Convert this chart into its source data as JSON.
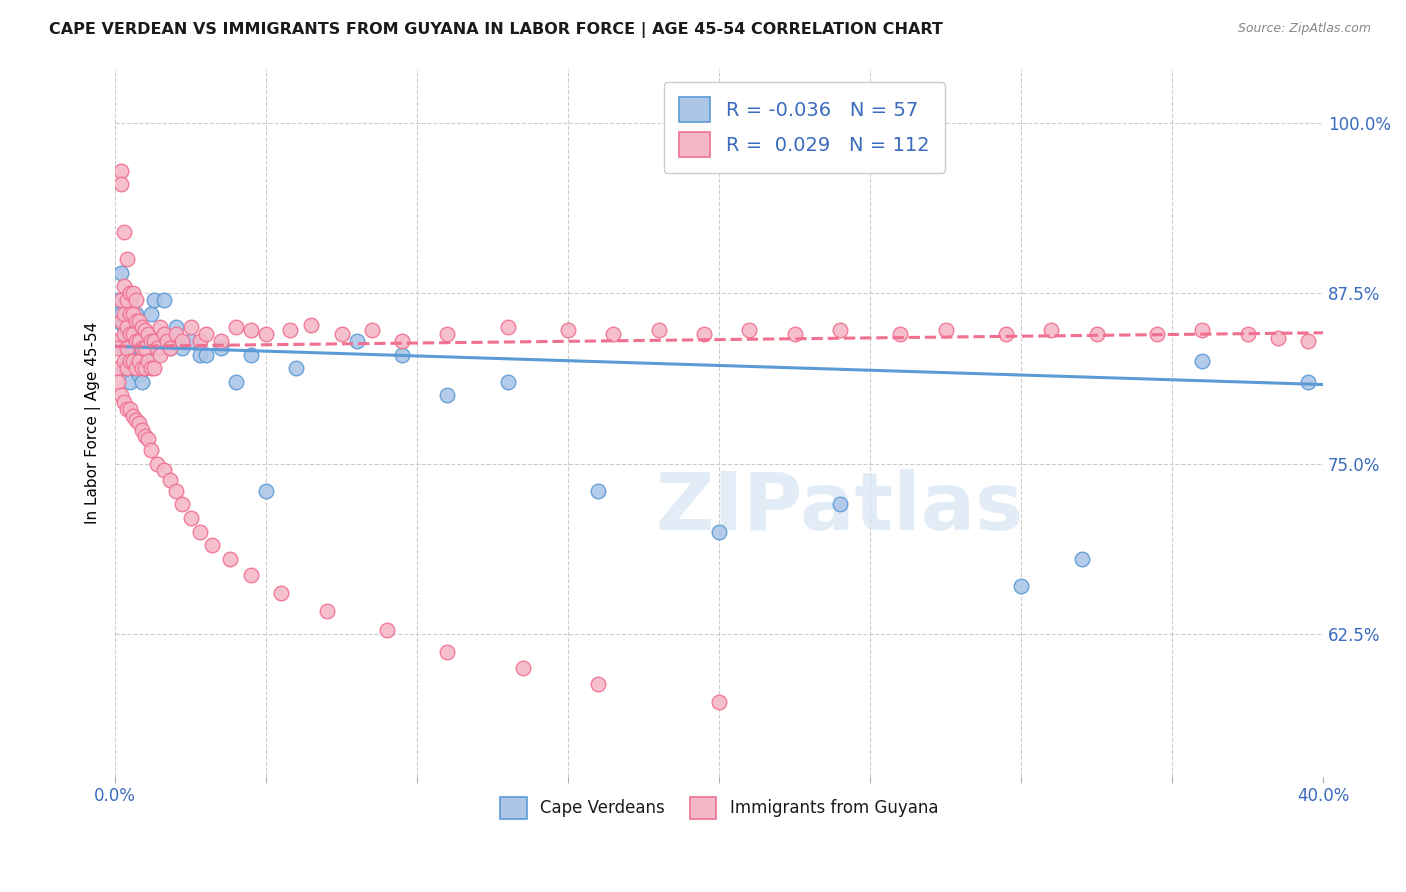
{
  "title": "CAPE VERDEAN VS IMMIGRANTS FROM GUYANA IN LABOR FORCE | AGE 45-54 CORRELATION CHART",
  "source": "Source: ZipAtlas.com",
  "ylabel": "In Labor Force | Age 45-54",
  "ytick_labels": [
    "62.5%",
    "75.0%",
    "87.5%",
    "100.0%"
  ],
  "ytick_values": [
    0.625,
    0.75,
    0.875,
    1.0
  ],
  "xlim": [
    0.0,
    0.4
  ],
  "ylim": [
    0.52,
    1.04
  ],
  "legend_r_blue": "-0.036",
  "legend_n_blue": "57",
  "legend_r_pink": "0.029",
  "legend_n_pink": "112",
  "color_blue_fill": "#adc6e8",
  "color_pink_fill": "#f5b8c8",
  "color_blue_edge": "#5b9bd5",
  "color_pink_edge": "#f07090",
  "watermark_text": "ZIPatlas",
  "blue_trend_x0": 0.0,
  "blue_trend_y0": 0.836,
  "blue_trend_x1": 0.4,
  "blue_trend_y1": 0.808,
  "pink_trend_x0": 0.0,
  "pink_trend_y0": 0.836,
  "pink_trend_x1": 0.4,
  "pink_trend_y1": 0.846,
  "blue_x": [
    0.001,
    0.001,
    0.002,
    0.002,
    0.002,
    0.003,
    0.003,
    0.003,
    0.003,
    0.004,
    0.004,
    0.004,
    0.004,
    0.005,
    0.005,
    0.005,
    0.005,
    0.006,
    0.006,
    0.006,
    0.007,
    0.007,
    0.007,
    0.008,
    0.008,
    0.009,
    0.009,
    0.01,
    0.01,
    0.011,
    0.012,
    0.013,
    0.014,
    0.015,
    0.016,
    0.018,
    0.02,
    0.022,
    0.025,
    0.028,
    0.03,
    0.035,
    0.04,
    0.045,
    0.05,
    0.06,
    0.08,
    0.095,
    0.11,
    0.13,
    0.16,
    0.2,
    0.24,
    0.3,
    0.32,
    0.36,
    0.395
  ],
  "blue_y": [
    0.855,
    0.87,
    0.89,
    0.86,
    0.84,
    0.85,
    0.835,
    0.82,
    0.855,
    0.845,
    0.83,
    0.855,
    0.82,
    0.87,
    0.84,
    0.82,
    0.81,
    0.85,
    0.835,
    0.82,
    0.86,
    0.84,
    0.82,
    0.835,
    0.815,
    0.83,
    0.81,
    0.84,
    0.82,
    0.825,
    0.86,
    0.87,
    0.84,
    0.835,
    0.87,
    0.835,
    0.85,
    0.835,
    0.84,
    0.83,
    0.83,
    0.835,
    0.81,
    0.83,
    0.73,
    0.82,
    0.84,
    0.83,
    0.8,
    0.81,
    0.73,
    0.7,
    0.72,
    0.66,
    0.68,
    0.825,
    0.81
  ],
  "pink_x": [
    0.001,
    0.001,
    0.001,
    0.002,
    0.002,
    0.002,
    0.002,
    0.003,
    0.003,
    0.003,
    0.003,
    0.003,
    0.004,
    0.004,
    0.004,
    0.004,
    0.004,
    0.005,
    0.005,
    0.005,
    0.005,
    0.006,
    0.006,
    0.006,
    0.006,
    0.007,
    0.007,
    0.007,
    0.007,
    0.008,
    0.008,
    0.008,
    0.009,
    0.009,
    0.009,
    0.01,
    0.01,
    0.01,
    0.011,
    0.011,
    0.012,
    0.012,
    0.013,
    0.013,
    0.014,
    0.015,
    0.015,
    0.016,
    0.017,
    0.018,
    0.02,
    0.022,
    0.025,
    0.028,
    0.03,
    0.035,
    0.04,
    0.045,
    0.05,
    0.058,
    0.065,
    0.075,
    0.085,
    0.095,
    0.11,
    0.13,
    0.15,
    0.165,
    0.18,
    0.195,
    0.21,
    0.225,
    0.24,
    0.26,
    0.275,
    0.295,
    0.31,
    0.325,
    0.345,
    0.36,
    0.375,
    0.385,
    0.395,
    0.001,
    0.002,
    0.003,
    0.004,
    0.005,
    0.006,
    0.007,
    0.008,
    0.009,
    0.01,
    0.011,
    0.012,
    0.014,
    0.016,
    0.018,
    0.02,
    0.022,
    0.025,
    0.028,
    0.032,
    0.038,
    0.045,
    0.055,
    0.07,
    0.09,
    0.11,
    0.135,
    0.16,
    0.2
  ],
  "pink_y": [
    0.84,
    0.835,
    0.82,
    0.965,
    0.955,
    0.87,
    0.855,
    0.92,
    0.88,
    0.86,
    0.845,
    0.825,
    0.9,
    0.87,
    0.85,
    0.835,
    0.82,
    0.875,
    0.86,
    0.845,
    0.825,
    0.875,
    0.86,
    0.845,
    0.825,
    0.87,
    0.855,
    0.84,
    0.82,
    0.855,
    0.84,
    0.825,
    0.85,
    0.835,
    0.82,
    0.848,
    0.835,
    0.82,
    0.845,
    0.825,
    0.84,
    0.82,
    0.84,
    0.82,
    0.835,
    0.85,
    0.83,
    0.845,
    0.84,
    0.835,
    0.845,
    0.84,
    0.85,
    0.84,
    0.845,
    0.84,
    0.85,
    0.848,
    0.845,
    0.848,
    0.852,
    0.845,
    0.848,
    0.84,
    0.845,
    0.85,
    0.848,
    0.845,
    0.848,
    0.845,
    0.848,
    0.845,
    0.848,
    0.845,
    0.848,
    0.845,
    0.848,
    0.845,
    0.845,
    0.848,
    0.845,
    0.842,
    0.84,
    0.81,
    0.8,
    0.795,
    0.79,
    0.79,
    0.785,
    0.782,
    0.78,
    0.775,
    0.77,
    0.768,
    0.76,
    0.75,
    0.745,
    0.738,
    0.73,
    0.72,
    0.71,
    0.7,
    0.69,
    0.68,
    0.668,
    0.655,
    0.642,
    0.628,
    0.612,
    0.6,
    0.588,
    0.575
  ]
}
